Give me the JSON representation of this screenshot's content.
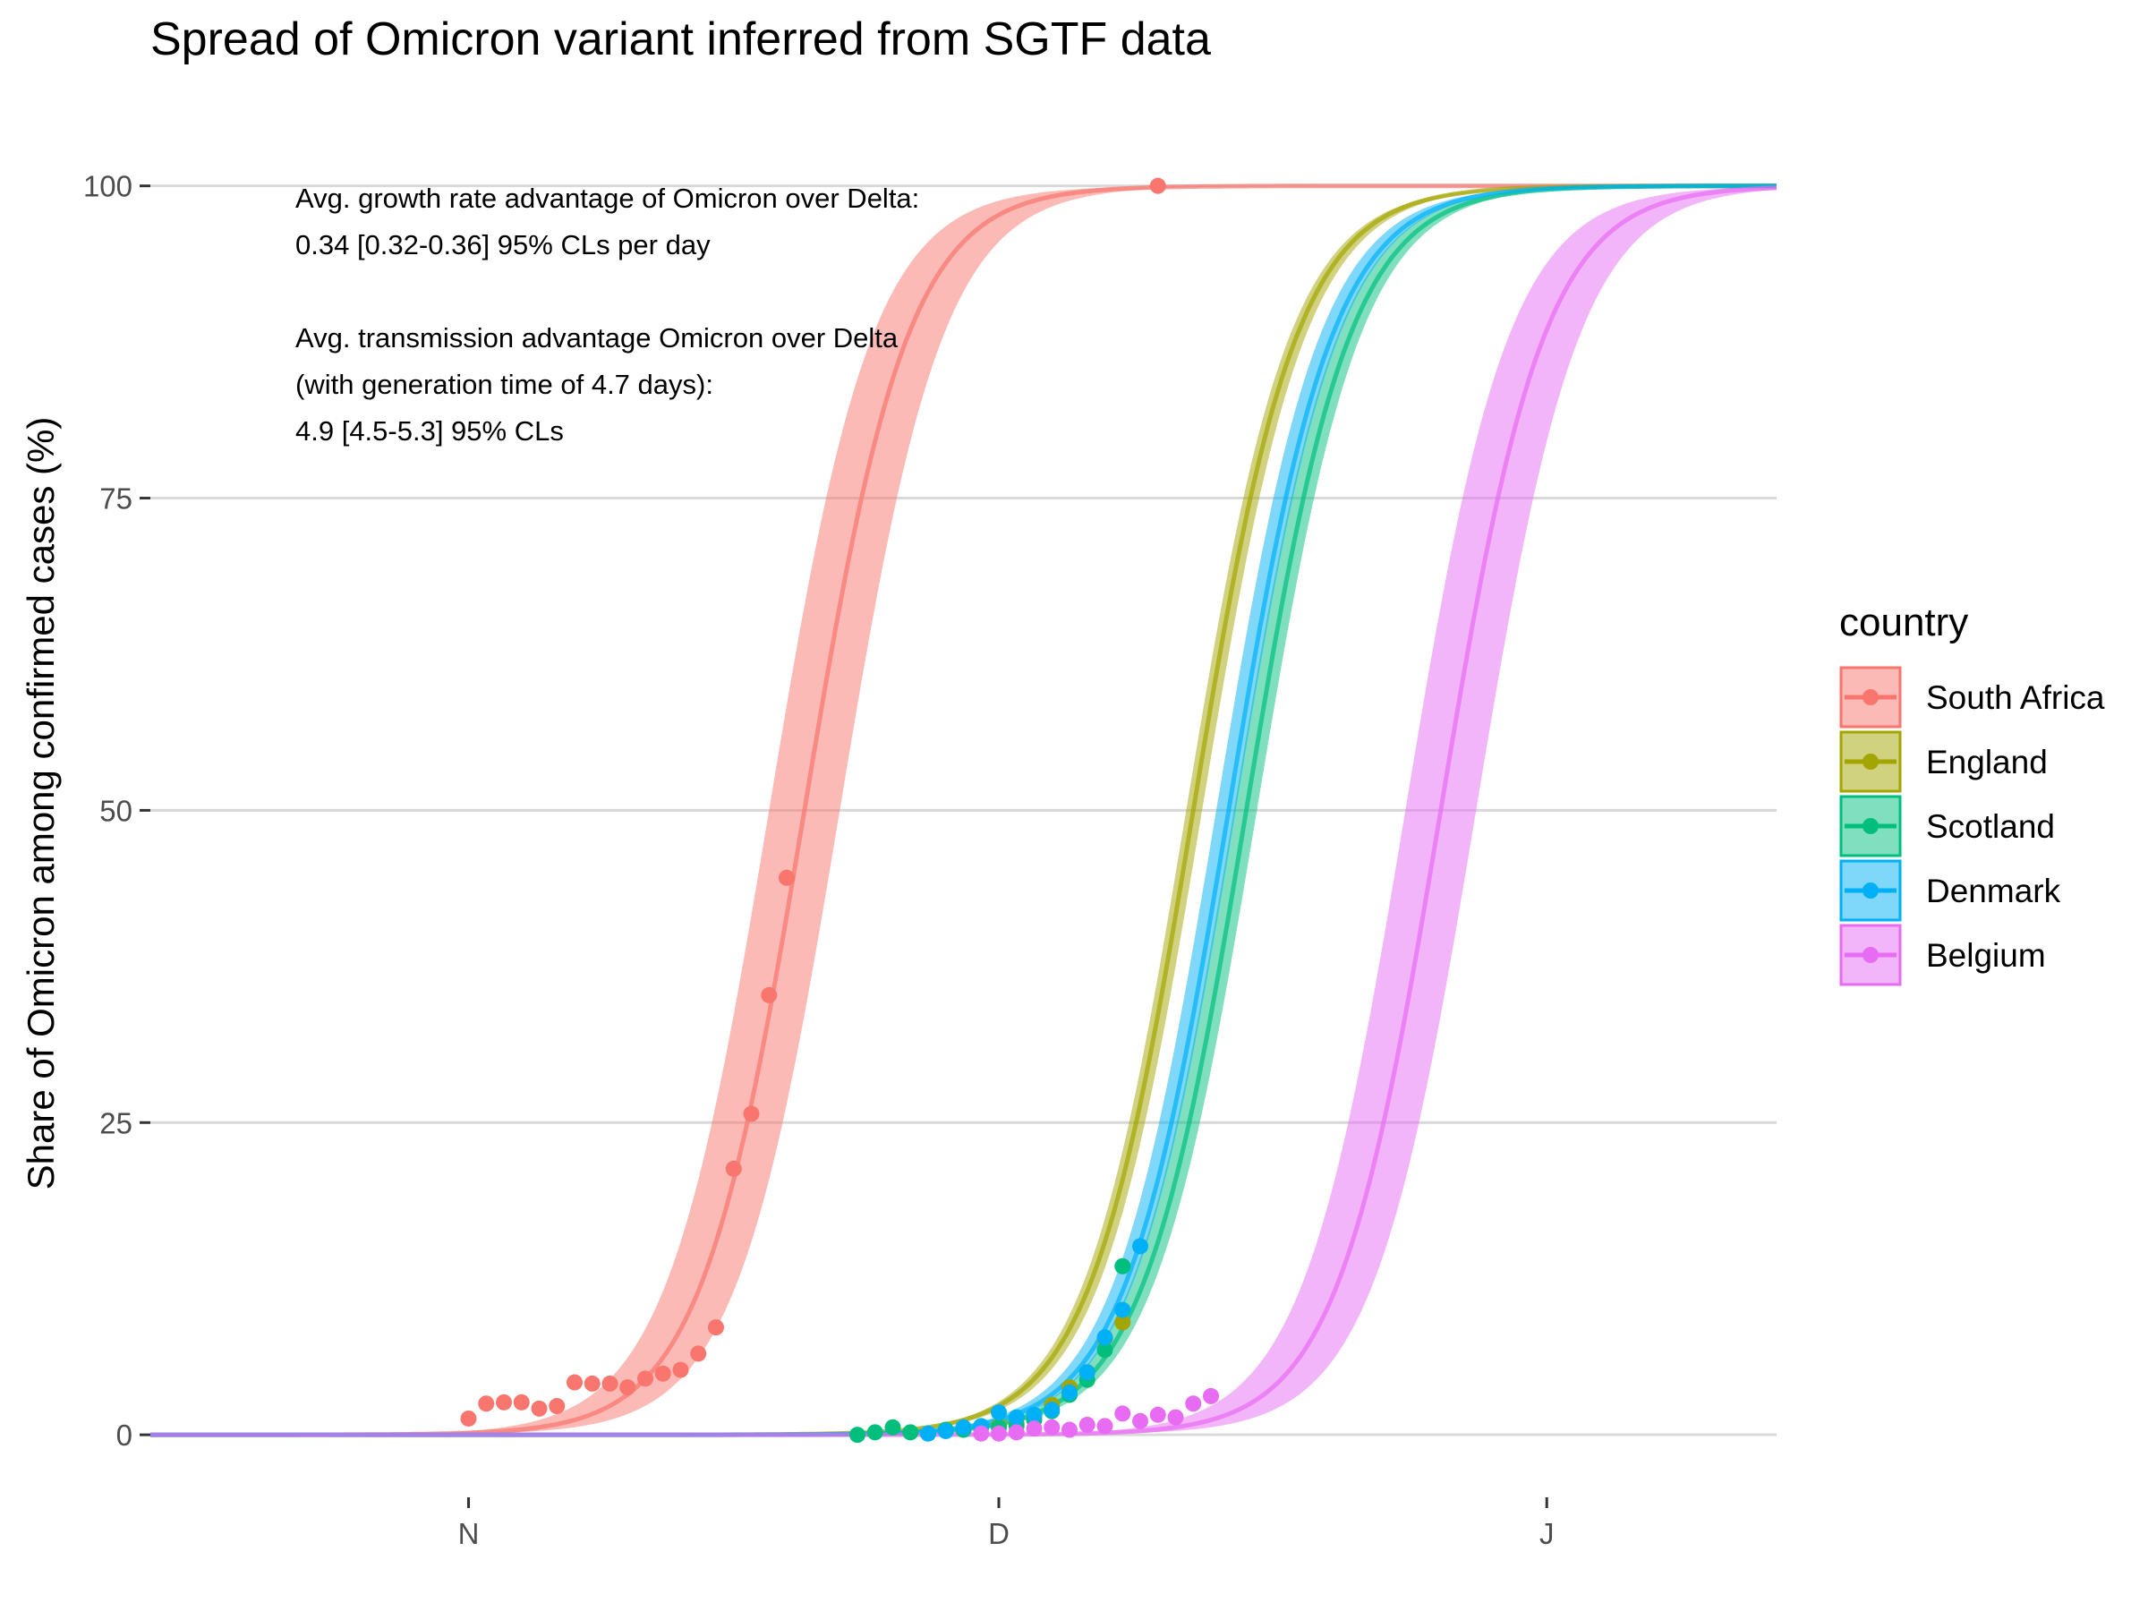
{
  "chart_data": {
    "type": "line",
    "title": "Spread of Omicron variant inferred from SGTF data",
    "ylabel": "Share of Omicron among confirmed cases (%)",
    "xlabel": "",
    "ylim": [
      -3,
      107
    ],
    "xlim": [
      "2021-10-14",
      "2022-01-14"
    ],
    "x_ticks": [
      {
        "date": "2021-11-01",
        "label": "N"
      },
      {
        "date": "2021-12-01",
        "label": "D"
      },
      {
        "date": "2022-01-01",
        "label": "J"
      }
    ],
    "y_ticks": [
      0,
      25,
      50,
      75,
      100
    ],
    "grid": "horizontal",
    "legend": {
      "title": "country",
      "position": "right"
    },
    "annotation": [
      "Avg. growth rate advantage of Omicron over Delta:",
      "0.34 [0.32-0.36] 95% CLs per day",
      "",
      "Avg. transmission advantage Omicron over Delta",
      "(with generation time of 4.7 days):",
      "4.9 [4.5-5.3] 95% CLs"
    ],
    "series": [
      {
        "name": "South Africa",
        "color": "#F8766D",
        "fit": {
          "midpoint": "2021-11-20",
          "rate": 0.34,
          "lower_midpoint": "2021-11-22",
          "upper_midpoint": "2021-11-18"
        },
        "points": [
          {
            "date": "2021-11-01",
            "y": 1.3
          },
          {
            "date": "2021-11-02",
            "y": 2.5
          },
          {
            "date": "2021-11-03",
            "y": 2.6
          },
          {
            "date": "2021-11-04",
            "y": 2.6
          },
          {
            "date": "2021-11-05",
            "y": 2.1
          },
          {
            "date": "2021-11-06",
            "y": 2.3
          },
          {
            "date": "2021-11-07",
            "y": 4.2
          },
          {
            "date": "2021-11-08",
            "y": 4.1
          },
          {
            "date": "2021-11-09",
            "y": 4.1
          },
          {
            "date": "2021-11-10",
            "y": 3.8
          },
          {
            "date": "2021-11-11",
            "y": 4.5
          },
          {
            "date": "2021-11-12",
            "y": 4.9
          },
          {
            "date": "2021-11-13",
            "y": 5.2
          },
          {
            "date": "2021-11-14",
            "y": 6.5
          },
          {
            "date": "2021-11-15",
            "y": 8.6
          },
          {
            "date": "2021-11-16",
            "y": 21.3
          },
          {
            "date": "2021-11-17",
            "y": 25.7
          },
          {
            "date": "2021-11-18",
            "y": 35.2
          },
          {
            "date": "2021-11-19",
            "y": 44.6
          },
          {
            "date": "2021-12-10",
            "y": 100.0
          }
        ]
      },
      {
        "name": "England",
        "color": "#A3A500",
        "fit": {
          "midpoint": "2021-12-12",
          "rate": 0.34,
          "lower_midpoint": "2021-12-12.5",
          "upper_midpoint": "2021-12-11.6"
        },
        "points": [
          {
            "date": "2021-12-01",
            "y": 0.7
          },
          {
            "date": "2021-12-02",
            "y": 0.9
          },
          {
            "date": "2021-12-03",
            "y": 1.4
          },
          {
            "date": "2021-12-04",
            "y": 2.4
          },
          {
            "date": "2021-12-05",
            "y": 3.8
          },
          {
            "date": "2021-12-06",
            "y": 5.0
          },
          {
            "date": "2021-12-07",
            "y": 7.7
          },
          {
            "date": "2021-12-08",
            "y": 9.0
          }
        ]
      },
      {
        "name": "Scotland",
        "color": "#00BF7D",
        "fit": {
          "midpoint": "2021-12-15",
          "rate": 0.34,
          "lower_midpoint": "2021-12-15.6",
          "upper_midpoint": "2021-12-14.3"
        },
        "points": [
          {
            "date": "2021-11-23",
            "y": 0.0
          },
          {
            "date": "2021-11-24",
            "y": 0.2
          },
          {
            "date": "2021-11-25",
            "y": 0.6
          },
          {
            "date": "2021-11-26",
            "y": 0.2
          },
          {
            "date": "2021-11-27",
            "y": 0.1
          },
          {
            "date": "2021-11-28",
            "y": 0.4
          },
          {
            "date": "2021-11-29",
            "y": 0.4
          },
          {
            "date": "2021-11-30",
            "y": 0.6
          },
          {
            "date": "2021-12-01",
            "y": 0.6
          },
          {
            "date": "2021-12-02",
            "y": 0.7
          },
          {
            "date": "2021-12-03",
            "y": 1.2
          },
          {
            "date": "2021-12-04",
            "y": 1.9
          },
          {
            "date": "2021-12-05",
            "y": 3.2
          },
          {
            "date": "2021-12-06",
            "y": 4.4
          },
          {
            "date": "2021-12-07",
            "y": 6.8
          },
          {
            "date": "2021-12-08",
            "y": 13.5
          }
        ]
      },
      {
        "name": "Denmark",
        "color": "#00B0F6",
        "fit": {
          "midpoint": "2021-12-14",
          "rate": 0.34,
          "lower_midpoint": "2021-12-14.4",
          "upper_midpoint": "2021-12-13.3"
        },
        "points": [
          {
            "date": "2021-11-27",
            "y": 0.1
          },
          {
            "date": "2021-11-28",
            "y": 0.3
          },
          {
            "date": "2021-11-29",
            "y": 0.6
          },
          {
            "date": "2021-11-30",
            "y": 0.7
          },
          {
            "date": "2021-12-01",
            "y": 1.8
          },
          {
            "date": "2021-12-02",
            "y": 1.4
          },
          {
            "date": "2021-12-03",
            "y": 1.6
          },
          {
            "date": "2021-12-04",
            "y": 2.0
          },
          {
            "date": "2021-12-05",
            "y": 3.4
          },
          {
            "date": "2021-12-06",
            "y": 5.0
          },
          {
            "date": "2021-12-07",
            "y": 7.8
          },
          {
            "date": "2021-12-08",
            "y": 10.0
          },
          {
            "date": "2021-12-09",
            "y": 15.1
          }
        ]
      },
      {
        "name": "Belgium",
        "color": "#E76BF3",
        "fit": {
          "midpoint": "2021-12-26",
          "rate": 0.34,
          "lower_midpoint": "2021-12-28",
          "upper_midpoint": "2021-12-24"
        },
        "points": [
          {
            "date": "2021-11-30",
            "y": 0.1
          },
          {
            "date": "2021-12-01",
            "y": 0.1
          },
          {
            "date": "2021-12-02",
            "y": 0.2
          },
          {
            "date": "2021-12-03",
            "y": 0.5
          },
          {
            "date": "2021-12-04",
            "y": 0.6
          },
          {
            "date": "2021-12-05",
            "y": 0.4
          },
          {
            "date": "2021-12-06",
            "y": 0.8
          },
          {
            "date": "2021-12-07",
            "y": 0.7
          },
          {
            "date": "2021-12-08",
            "y": 1.7
          },
          {
            "date": "2021-12-09",
            "y": 1.1
          },
          {
            "date": "2021-12-10",
            "y": 1.6
          },
          {
            "date": "2021-12-11",
            "y": 1.4
          },
          {
            "date": "2021-12-12",
            "y": 2.5
          },
          {
            "date": "2021-12-13",
            "y": 3.1
          }
        ]
      }
    ]
  }
}
